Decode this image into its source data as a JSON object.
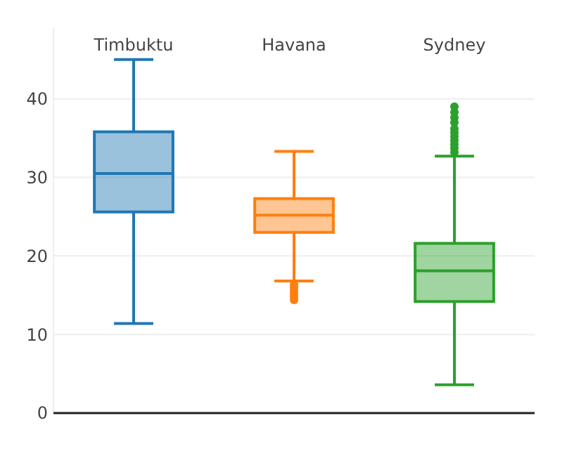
{
  "chart_data": {
    "type": "box",
    "categories": [
      "Timbuktu",
      "Havana",
      "Sydney"
    ],
    "colors": [
      "#1f77b4",
      "#ff7f0e",
      "#2ca02c"
    ],
    "boxes": [
      {
        "low": 11.4,
        "q1": 25.6,
        "median": 30.5,
        "q3": 35.8,
        "high": 45
      },
      {
        "low": 16.8,
        "q1": 23,
        "median": 25.2,
        "q3": 27.3,
        "high": 33.3,
        "outliers": [
          16.4,
          16,
          15.6,
          15.2,
          14.8,
          14.4
        ]
      },
      {
        "low": 3.6,
        "q1": 14.2,
        "median": 18.1,
        "q3": 21.6,
        "high": 32.7,
        "outliers": [
          33.2,
          33.7,
          34.2,
          34.7,
          35.2,
          35.7,
          36.2,
          37,
          37.6,
          38.3,
          39
        ]
      }
    ],
    "ylim": [
      0,
      49
    ],
    "yticks": [
      0,
      10,
      20,
      30,
      40
    ],
    "grid": "y"
  }
}
